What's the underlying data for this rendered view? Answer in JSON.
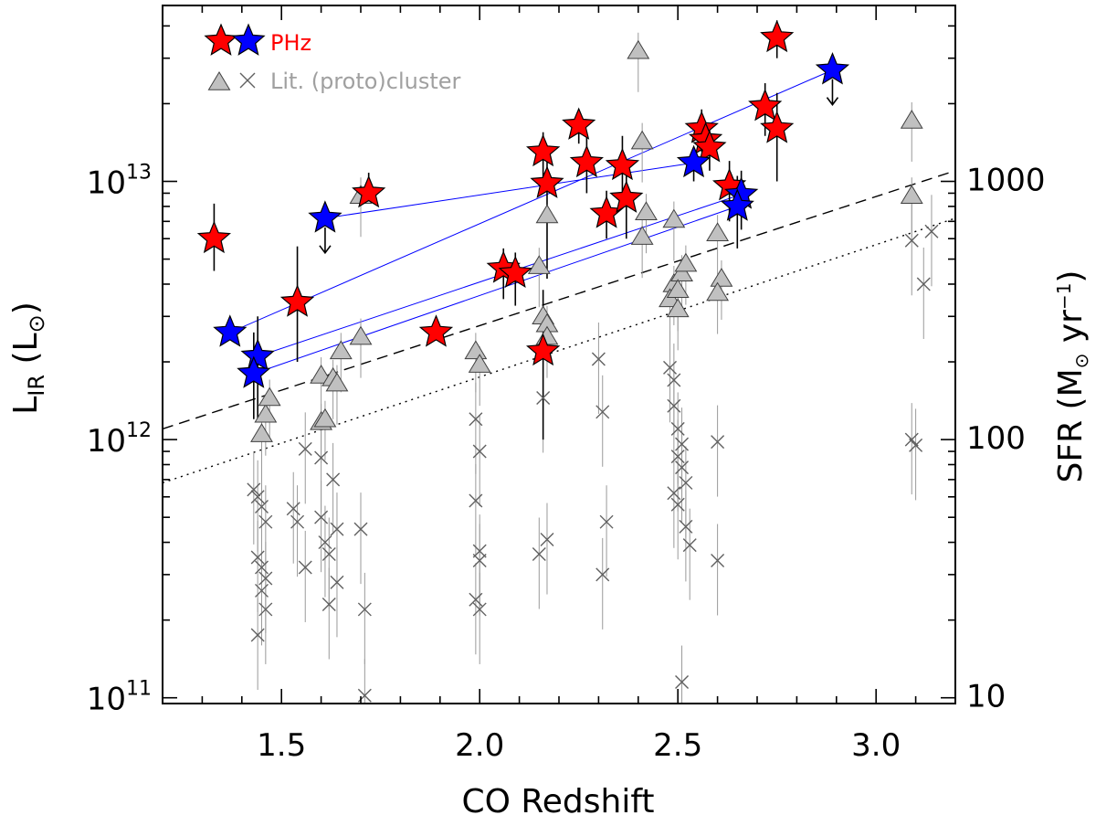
{
  "chart_data": {
    "type": "scatter",
    "xlabel": "CO Redshift",
    "ylabel": "L_IR (L_⊙)",
    "ylabel_right": "SFR (M_⊙ yr^-1)",
    "xlim": [
      1.2,
      3.2
    ],
    "ylim": [
      95000000000.0,
      48000000000000.0
    ],
    "x_ticks": [
      1.5,
      2.0,
      2.5,
      3.0
    ],
    "x_tick_labels": [
      "1.5",
      "2.0",
      "2.5",
      "3.0"
    ],
    "y_ticks": [
      100000000000.0,
      1000000000000.0,
      10000000000000.0
    ],
    "y_tick_base": "10",
    "y_tick_exponents": [
      "11",
      "12",
      "13"
    ],
    "y_right_ticks": [
      10,
      100,
      1000
    ],
    "y_right_tick_labels": [
      "10",
      "100",
      "1000"
    ],
    "legend": {
      "phz_label": "PHz",
      "lit_label": "Lit. (proto)cluster",
      "location": "top-left"
    },
    "colors": {
      "phz": "#ff0000",
      "phz_blue": "#0000ff",
      "lit_triangle": "#c0c0c0",
      "lit_cross": "#606060",
      "legend_lit_text": "#a0a0a0",
      "model_line": "#0000ff"
    },
    "phz_red": [
      {
        "z": 1.33,
        "lir": 6000000000000.0,
        "lo": 4500000000000.0,
        "hi": 8200000000000.0
      },
      {
        "z": 1.54,
        "lir": 3400000000000.0,
        "lo": 2000000000000.0,
        "hi": 5600000000000.0
      },
      {
        "z": 1.72,
        "lir": 9000000000000.0,
        "lo": 8200000000000.0,
        "hi": 10800000000000.0
      },
      {
        "z": 1.89,
        "lir": 2600000000000.0,
        "lo": 2600000000000.0,
        "hi": 2600000000000.0
      },
      {
        "z": 2.06,
        "lir": 4600000000000.0,
        "lo": 3500000000000.0,
        "hi": 5500000000000.0
      },
      {
        "z": 2.09,
        "lir": 4400000000000.0,
        "lo": 3300000000000.0,
        "hi": 5300000000000.0
      },
      {
        "z": 2.16,
        "lir": 13000000000000.0,
        "lo": 9000000000000.0,
        "hi": 15500000000000.0
      },
      {
        "z": 2.17,
        "lir": 9800000000000.0,
        "lo": 4200000000000.0,
        "hi": 13000000000000.0
      },
      {
        "z": 2.16,
        "lir": 2200000000000.0,
        "lo": 1000000000000.0,
        "hi": 3800000000000.0
      },
      {
        "z": 2.25,
        "lir": 16500000000000.0,
        "lo": 14000000000000.0,
        "hi": 19000000000000.0
      },
      {
        "z": 2.27,
        "lir": 11800000000000.0,
        "lo": 9000000000000.0,
        "hi": 15500000000000.0
      },
      {
        "z": 2.32,
        "lir": 7500000000000.0,
        "lo": 6000000000000.0,
        "hi": 9200000000000.0
      },
      {
        "z": 2.36,
        "lir": 11500000000000.0,
        "lo": 8000000000000.0,
        "hi": 15000000000000.0
      },
      {
        "z": 2.37,
        "lir": 8600000000000.0,
        "lo": 6000000000000.0,
        "hi": 10500000000000.0
      },
      {
        "z": 2.56,
        "lir": 16000000000000.0,
        "lo": 13000000000000.0,
        "hi": 19000000000000.0
      },
      {
        "z": 2.57,
        "lir": 14500000000000.0,
        "lo": 12000000000000.0,
        "hi": 17000000000000.0
      },
      {
        "z": 2.58,
        "lir": 13500000000000.0,
        "lo": 11000000000000.0,
        "hi": 16000000000000.0
      },
      {
        "z": 2.63,
        "lir": 9600000000000.0,
        "lo": 7000000000000.0,
        "hi": 12000000000000.0
      },
      {
        "z": 2.72,
        "lir": 19500000000000.0,
        "lo": 15000000000000.0,
        "hi": 24000000000000.0
      },
      {
        "z": 2.75,
        "lir": 36000000000000.0,
        "lo": 30000000000000.0,
        "hi": 42000000000000.0
      },
      {
        "z": 2.75,
        "lir": 16000000000000.0,
        "lo": 10000000000000.0,
        "hi": 22000000000000.0
      }
    ],
    "phz_blue": [
      {
        "z": 1.37,
        "lir": 2600000000000.0,
        "lo": 2600000000000.0,
        "hi": 2600000000000.0
      },
      {
        "z": 1.44,
        "lir": 2100000000000.0,
        "lo": 1200000000000.0,
        "hi": 3000000000000.0
      },
      {
        "z": 1.43,
        "lir": 1800000000000.0,
        "lo": 1200000000000.0,
        "hi": 2600000000000.0
      },
      {
        "z": 1.61,
        "lir": 7200000000000.0,
        "lo": 7200000000000.0,
        "hi": 7200000000000.0,
        "upper_limit": true
      },
      {
        "z": 2.54,
        "lir": 11800000000000.0,
        "lo": 10000000000000.0,
        "hi": 13500000000000.0
      },
      {
        "z": 2.66,
        "lir": 8900000000000.0,
        "lo": 6500000000000.0,
        "hi": 11000000000000.0
      },
      {
        "z": 2.65,
        "lir": 8000000000000.0,
        "lo": 5500000000000.0,
        "hi": 10500000000000.0
      },
      {
        "z": 2.89,
        "lir": 27000000000000.0,
        "lo": 27000000000000.0,
        "hi": 27000000000000.0,
        "upper_limit": true
      }
    ],
    "model_tracks": [
      {
        "x": [
          1.37,
          2.89
        ],
        "y": [
          2600000000000.0,
          27000000000000.0
        ]
      },
      {
        "x": [
          1.61,
          2.54
        ],
        "y": [
          7200000000000.0,
          11800000000000.0
        ]
      },
      {
        "x": [
          1.44,
          2.66
        ],
        "y": [
          2100000000000.0,
          8900000000000.0
        ]
      },
      {
        "x": [
          1.43,
          2.65
        ],
        "y": [
          1800000000000.0,
          8000000000000.0
        ]
      }
    ],
    "reference_lines": [
      {
        "style": "dashed",
        "x": [
          1.2,
          3.2
        ],
        "y": [
          1100000000000.0,
          11000000000000.0
        ]
      },
      {
        "style": "dotted",
        "x": [
          1.2,
          3.2
        ],
        "y": [
          680000000000.0,
          7200000000000.0
        ]
      }
    ],
    "lit_triangles": [
      {
        "z": 1.45,
        "lir": 1050000000000.0
      },
      {
        "z": 1.46,
        "lir": 1250000000000.0
      },
      {
        "z": 1.47,
        "lir": 1450000000000.0
      },
      {
        "z": 1.6,
        "lir": 1170000000000.0
      },
      {
        "z": 1.61,
        "lir": 1200000000000.0
      },
      {
        "z": 1.6,
        "lir": 1770000000000.0
      },
      {
        "z": 1.63,
        "lir": 1730000000000.0
      },
      {
        "z": 1.64,
        "lir": 1650000000000.0
      },
      {
        "z": 1.65,
        "lir": 2200000000000.0
      },
      {
        "z": 1.7,
        "lir": 8800000000000.0
      },
      {
        "z": 1.7,
        "lir": 2500000000000.0
      },
      {
        "z": 1.99,
        "lir": 2200000000000.0
      },
      {
        "z": 2.0,
        "lir": 1950000000000.0
      },
      {
        "z": 2.15,
        "lir": 4700000000000.0
      },
      {
        "z": 2.16,
        "lir": 3000000000000.0
      },
      {
        "z": 2.17,
        "lir": 2800000000000.0
      },
      {
        "z": 2.17,
        "lir": 2500000000000.0
      },
      {
        "z": 2.17,
        "lir": 7400000000000.0
      },
      {
        "z": 2.4,
        "lir": 32000000000000.0
      },
      {
        "z": 2.41,
        "lir": 14300000000000.0
      },
      {
        "z": 2.42,
        "lir": 7600000000000.0
      },
      {
        "z": 2.41,
        "lir": 6100000000000.0
      },
      {
        "z": 2.49,
        "lir": 7100000000000.0
      },
      {
        "z": 2.49,
        "lir": 4000000000000.0
      },
      {
        "z": 2.48,
        "lir": 3500000000000.0
      },
      {
        "z": 2.5,
        "lir": 3200000000000.0
      },
      {
        "z": 2.51,
        "lir": 4400000000000.0
      },
      {
        "z": 2.52,
        "lir": 4800000000000.0
      },
      {
        "z": 2.5,
        "lir": 3800000000000.0
      },
      {
        "z": 2.6,
        "lir": 6300000000000.0
      },
      {
        "z": 2.61,
        "lir": 4200000000000.0
      },
      {
        "z": 2.6,
        "lir": 3700000000000.0
      },
      {
        "z": 3.09,
        "lir": 8800000000000.0
      },
      {
        "z": 3.09,
        "lir": 17200000000000.0
      }
    ],
    "lit_crosses": [
      {
        "z": 1.43,
        "lir": 640000000000.0
      },
      {
        "z": 1.44,
        "lir": 600000000000.0
      },
      {
        "z": 1.45,
        "lir": 550000000000.0
      },
      {
        "z": 1.46,
        "lir": 480000000000.0
      },
      {
        "z": 1.44,
        "lir": 350000000000.0
      },
      {
        "z": 1.45,
        "lir": 320000000000.0
      },
      {
        "z": 1.46,
        "lir": 290000000000.0
      },
      {
        "z": 1.45,
        "lir": 260000000000.0
      },
      {
        "z": 1.46,
        "lir": 220000000000.0
      },
      {
        "z": 1.44,
        "lir": 175000000000.0
      },
      {
        "z": 1.53,
        "lir": 540000000000.0
      },
      {
        "z": 1.54,
        "lir": 480000000000.0
      },
      {
        "z": 1.56,
        "lir": 320000000000.0
      },
      {
        "z": 1.56,
        "lir": 920000000000.0
      },
      {
        "z": 1.6,
        "lir": 850000000000.0
      },
      {
        "z": 1.6,
        "lir": 500000000000.0
      },
      {
        "z": 1.61,
        "lir": 400000000000.0
      },
      {
        "z": 1.62,
        "lir": 360000000000.0
      },
      {
        "z": 1.63,
        "lir": 700000000000.0
      },
      {
        "z": 1.64,
        "lir": 450000000000.0
      },
      {
        "z": 1.64,
        "lir": 280000000000.0
      },
      {
        "z": 1.62,
        "lir": 230000000000.0
      },
      {
        "z": 1.7,
        "lir": 450000000000.0
      },
      {
        "z": 1.71,
        "lir": 220000000000.0
      },
      {
        "z": 1.71,
        "lir": 102000000000.0
      },
      {
        "z": 1.99,
        "lir": 1200000000000.0
      },
      {
        "z": 2.0,
        "lir": 900000000000.0
      },
      {
        "z": 1.99,
        "lir": 580000000000.0
      },
      {
        "z": 2.0,
        "lir": 370000000000.0
      },
      {
        "z": 2.0,
        "lir": 340000000000.0
      },
      {
        "z": 1.99,
        "lir": 240000000000.0
      },
      {
        "z": 2.0,
        "lir": 220000000000.0
      },
      {
        "z": 2.15,
        "lir": 360000000000.0
      },
      {
        "z": 2.17,
        "lir": 410000000000.0
      },
      {
        "z": 2.16,
        "lir": 1450000000000.0
      },
      {
        "z": 2.3,
        "lir": 2050000000000.0
      },
      {
        "z": 2.31,
        "lir": 1280000000000.0
      },
      {
        "z": 2.32,
        "lir": 480000000000.0
      },
      {
        "z": 2.31,
        "lir": 300000000000.0
      },
      {
        "z": 2.48,
        "lir": 1900000000000.0
      },
      {
        "z": 2.49,
        "lir": 1700000000000.0
      },
      {
        "z": 2.49,
        "lir": 1350000000000.0
      },
      {
        "z": 2.5,
        "lir": 1100000000000.0
      },
      {
        "z": 2.51,
        "lir": 960000000000.0
      },
      {
        "z": 2.5,
        "lir": 860000000000.0
      },
      {
        "z": 2.51,
        "lir": 780000000000.0
      },
      {
        "z": 2.52,
        "lir": 680000000000.0
      },
      {
        "z": 2.49,
        "lir": 620000000000.0
      },
      {
        "z": 2.5,
        "lir": 560000000000.0
      },
      {
        "z": 2.52,
        "lir": 460000000000.0
      },
      {
        "z": 2.53,
        "lir": 390000000000.0
      },
      {
        "z": 2.51,
        "lir": 115000000000.0
      },
      {
        "z": 2.6,
        "lir": 980000000000.0
      },
      {
        "z": 2.6,
        "lir": 340000000000.0
      },
      {
        "z": 3.09,
        "lir": 5900000000000.0
      },
      {
        "z": 3.14,
        "lir": 6400000000000.0
      },
      {
        "z": 3.12,
        "lir": 4000000000000.0
      },
      {
        "z": 3.09,
        "lir": 1000000000000.0
      },
      {
        "z": 3.1,
        "lir": 950000000000.0
      }
    ]
  }
}
